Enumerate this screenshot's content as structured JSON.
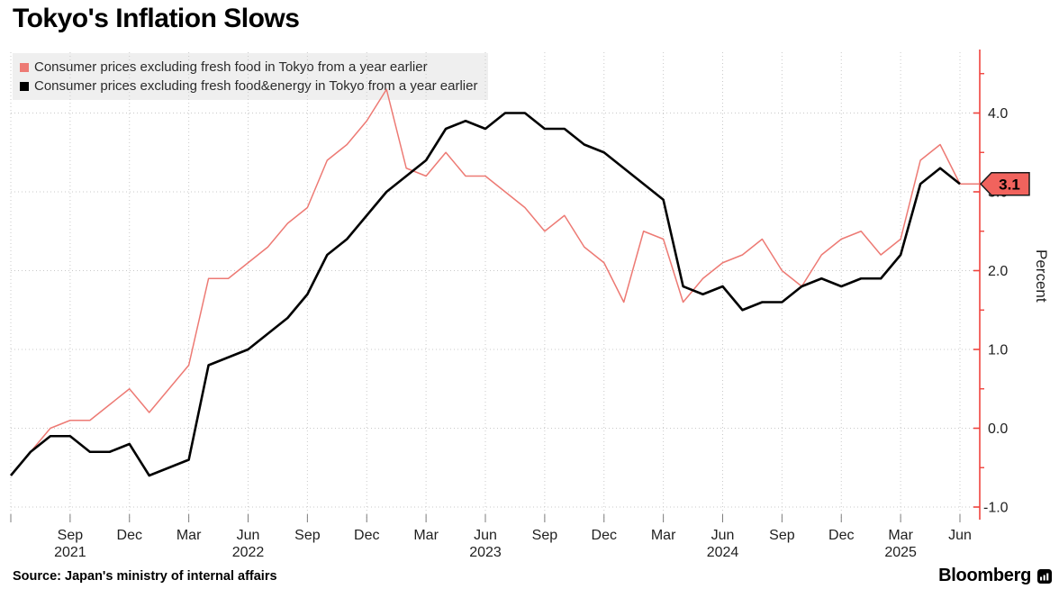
{
  "title": "Tokyo's Inflation Slows",
  "source": "Source: Japan's ministry of internal affairs",
  "brand": "Bloomberg",
  "legend": [
    {
      "label": "Consumer prices excluding fresh food in Tokyo from a year earlier",
      "color": "#ed7a74"
    },
    {
      "label": "Consumer prices excluding fresh food&energy in Tokyo from a year earlier",
      "color": "#000000"
    }
  ],
  "colors": {
    "axis_red": "#f0433d",
    "series_red": "#ed7a74",
    "series_black": "#000000",
    "badge_fill": "#f1635d",
    "badge_border": "#1a1a1a",
    "grid": "#c9c9c9",
    "legend_bg": "#efefef"
  },
  "chart_data": {
    "type": "line",
    "title": "Tokyo's Inflation Slows",
    "ylabel": "Percent",
    "xlabel": "",
    "ylim": [
      -1.0,
      4.5
    ],
    "grid": "dotted, quarterly vertical and unit horizontal",
    "legend_position": "top-left",
    "x": [
      "Jun 2021",
      "Jul 2021",
      "Aug 2021",
      "Sep 2021",
      "Oct 2021",
      "Nov 2021",
      "Dec 2021",
      "Jan 2022",
      "Feb 2022",
      "Mar 2022",
      "Apr 2022",
      "May 2022",
      "Jun 2022",
      "Jul 2022",
      "Aug 2022",
      "Sep 2022",
      "Oct 2022",
      "Nov 2022",
      "Dec 2022",
      "Jan 2023",
      "Feb 2023",
      "Mar 2023",
      "Apr 2023",
      "May 2023",
      "Jun 2023",
      "Jul 2023",
      "Aug 2023",
      "Sep 2023",
      "Oct 2023",
      "Nov 2023",
      "Dec 2023",
      "Jan 2024",
      "Feb 2024",
      "Mar 2024",
      "Apr 2024",
      "May 2024",
      "Jun 2024",
      "Jul 2024",
      "Aug 2024",
      "Sep 2024",
      "Oct 2024",
      "Nov 2024",
      "Dec 2024",
      "Jan 2025",
      "Feb 2025",
      "Mar 2025",
      "Apr 2025",
      "May 2025",
      "Jun 2025"
    ],
    "series": [
      {
        "name": "Consumer prices excluding fresh food in Tokyo from a year earlier",
        "color": "#ed7a74",
        "extend_to_axis": true,
        "values": [
          -0.6,
          -0.3,
          0.0,
          0.1,
          0.1,
          0.3,
          0.5,
          0.2,
          0.5,
          0.8,
          1.9,
          1.9,
          2.1,
          2.3,
          2.6,
          2.8,
          3.4,
          3.6,
          3.9,
          4.3,
          3.3,
          3.2,
          3.5,
          3.2,
          3.2,
          3.0,
          2.8,
          2.5,
          2.7,
          2.3,
          2.1,
          1.6,
          2.5,
          2.4,
          1.6,
          1.9,
          2.1,
          2.2,
          2.4,
          2.0,
          1.8,
          2.2,
          2.4,
          2.5,
          2.2,
          2.4,
          3.4,
          3.6,
          3.1
        ]
      },
      {
        "name": "Consumer prices excluding fresh food&energy in Tokyo from a year earlier",
        "color": "#000000",
        "extend_to_axis": false,
        "values": [
          -0.6,
          -0.3,
          -0.1,
          -0.1,
          -0.3,
          -0.3,
          -0.2,
          -0.6,
          -0.5,
          -0.4,
          0.8,
          0.9,
          1.0,
          1.2,
          1.4,
          1.7,
          2.2,
          2.4,
          2.7,
          3.0,
          3.2,
          3.4,
          3.8,
          3.9,
          3.8,
          4.0,
          4.0,
          3.8,
          3.8,
          3.6,
          3.5,
          3.3,
          3.1,
          2.9,
          1.8,
          1.7,
          1.8,
          1.5,
          1.6,
          1.6,
          1.8,
          1.9,
          1.8,
          1.9,
          1.9,
          2.2,
          3.1,
          3.3,
          3.1
        ]
      }
    ],
    "yticks": [
      {
        "v": -1.0,
        "label": "-1.0"
      },
      {
        "v": 0.0,
        "label": "0.0"
      },
      {
        "v": 1.0,
        "label": "1.0"
      },
      {
        "v": 2.0,
        "label": "2.0"
      },
      {
        "v": 3.0,
        "label": "3.0"
      },
      {
        "v": 4.0,
        "label": "4.0"
      }
    ],
    "yticks_minor": [
      -0.5,
      0.5,
      1.5,
      2.5,
      3.5,
      4.5
    ],
    "x_ticks": [
      {
        "m": "Sep",
        "y": "2021"
      },
      {
        "m": "Dec"
      },
      {
        "m": "Mar"
      },
      {
        "m": "Jun",
        "y": "2022"
      },
      {
        "m": "Sep"
      },
      {
        "m": "Dec"
      },
      {
        "m": "Mar"
      },
      {
        "m": "Jun",
        "y": "2023"
      },
      {
        "m": "Sep"
      },
      {
        "m": "Dec"
      },
      {
        "m": "Mar"
      },
      {
        "m": "Jun",
        "y": "2024"
      },
      {
        "m": "Sep"
      },
      {
        "m": "Dec"
      },
      {
        "m": "Mar",
        "y": "2025"
      },
      {
        "m": "Jun"
      }
    ],
    "end_badge": {
      "label": "3.1",
      "value": 3.1
    }
  }
}
